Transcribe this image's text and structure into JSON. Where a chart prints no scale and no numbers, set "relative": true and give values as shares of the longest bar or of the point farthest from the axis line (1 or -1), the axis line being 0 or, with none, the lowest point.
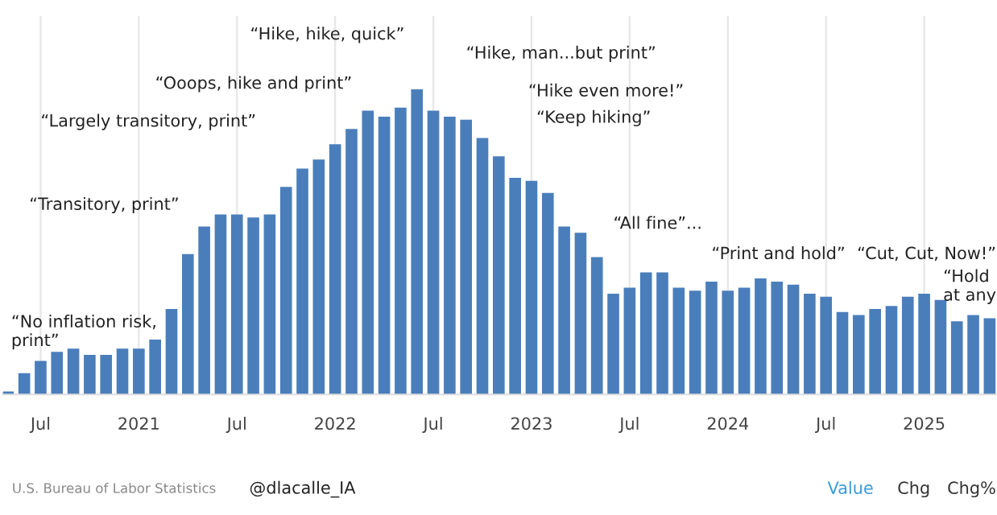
{
  "chart_data": {
    "type": "bar",
    "relative": true,
    "grid": "x",
    "color": "#4a7ebb",
    "categories": [
      null,
      null,
      "Jul",
      null,
      null,
      null,
      null,
      null,
      "2021",
      null,
      null,
      null,
      null,
      null,
      "Jul",
      null,
      null,
      null,
      null,
      null,
      "2022",
      null,
      null,
      null,
      null,
      null,
      "Jul",
      null,
      null,
      null,
      null,
      null,
      "2023",
      null,
      null,
      null,
      null,
      null,
      "Jul",
      null,
      null,
      null,
      null,
      null,
      "2024",
      null,
      null,
      null,
      null,
      null,
      "Jul",
      null,
      null,
      null,
      null,
      null,
      "2025",
      null,
      null,
      null,
      null
    ],
    "values": [
      0.01,
      0.07,
      0.11,
      0.14,
      0.15,
      0.13,
      0.13,
      0.15,
      0.15,
      0.18,
      0.28,
      0.46,
      0.55,
      0.59,
      0.59,
      0.58,
      0.59,
      0.68,
      0.74,
      0.77,
      0.82,
      0.87,
      0.93,
      0.91,
      0.94,
      1,
      0.93,
      0.91,
      0.9,
      0.84,
      0.78,
      0.71,
      0.7,
      0.66,
      0.55,
      0.53,
      0.45,
      0.33,
      0.35,
      0.4,
      0.4,
      0.35,
      0.34,
      0.37,
      0.34,
      0.35,
      0.38,
      0.37,
      0.36,
      0.33,
      0.32,
      0.27,
      0.26,
      0.28,
      0.29,
      0.32,
      0.33,
      0.31,
      0.24,
      0.26,
      0.25
    ],
    "annotations": [
      "“No inflation risk,\nprint”",
      "“Transitory, print”",
      "“Largely transitory, print”",
      "“Ooops, hike and print”",
      "“Hike, hike, quick”",
      "“Hike, man...but print”",
      "“Hike even more!”",
      "“Keep hiking”",
      "“All fine”...",
      "“Print and hold”",
      "“Cut, Cut, Now!”",
      "“Hold\nat any",
      "U.S. Bureau of Labor Statistics",
      "@dlacalle_IA",
      "Value",
      "Chg",
      "Chg%"
    ]
  }
}
